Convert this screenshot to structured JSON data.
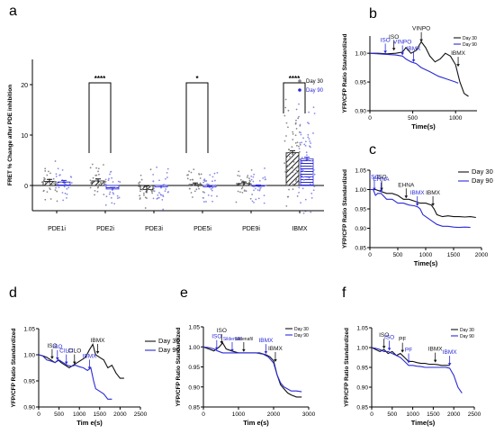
{
  "colors": {
    "day30": "#111111",
    "day90": "#2a2ad8",
    "axis": "#000000"
  },
  "chart_data": [
    {
      "panel": "a",
      "type": "bar",
      "ylabel": "FRET % Change after PDE inhibition",
      "categories": [
        "PDE1i",
        "PDE2i",
        "PDE3i",
        "PDE5i",
        "PDE9i",
        "IBMX"
      ],
      "ylim": [
        -5,
        25
      ],
      "yticks": [
        "0",
        "10",
        "20"
      ],
      "series": [
        {
          "name": "Day 30",
          "values": [
            0.8,
            0.9,
            -0.8,
            0.2,
            0.4,
            6.5
          ],
          "errors": [
            0.4,
            0.4,
            0.7,
            0.3,
            0.3,
            0.4
          ]
        },
        {
          "name": "Day 90",
          "values": [
            0.7,
            -0.7,
            -0.3,
            -0.3,
            -0.1,
            5.3
          ],
          "errors": [
            0.3,
            0.3,
            0.3,
            0.2,
            0.2,
            0.3
          ]
        }
      ],
      "significance": [
        {
          "between": [
            "PDE2i",
            "PDE2i"
          ],
          "label": "****"
        },
        {
          "between": [
            "PDE5i",
            "PDE5i"
          ],
          "label": "*"
        },
        {
          "between": [
            "IBMX",
            "IBMX"
          ],
          "label": "****"
        }
      ],
      "legend": "top-right"
    },
    {
      "panel": "b",
      "type": "line",
      "xlabel": "Time(s)",
      "ylabel": "YFP/CFP Ratio Standardized",
      "xlim": [
        0,
        1250
      ],
      "ylim": [
        0.9,
        1.03
      ],
      "xticks": [
        "0",
        "500",
        "1000"
      ],
      "yticks": [
        "0.90",
        "0.95",
        "1.00"
      ],
      "legend": "top-right",
      "series": [
        {
          "name": "Day 30",
          "x": [
            0,
            100,
            200,
            300,
            380,
            420,
            480,
            540,
            600,
            650,
            700,
            760,
            820,
            880,
            940,
            1000,
            1050,
            1100,
            1150
          ],
          "y": [
            1.0,
            1.0,
            0.999,
            1.0,
            1.002,
            1.01,
            1.0,
            1.005,
            1.02,
            1.01,
            0.995,
            0.985,
            0.99,
            1.0,
            0.995,
            0.98,
            0.95,
            0.93,
            0.925
          ]
        },
        {
          "name": "Day 90",
          "x": [
            0,
            100,
            200,
            300,
            380,
            420,
            480,
            540,
            600,
            700,
            800,
            900,
            1000,
            1030
          ],
          "y": [
            1.0,
            0.999,
            0.998,
            0.997,
            0.995,
            0.99,
            0.985,
            0.982,
            0.975,
            0.968,
            0.96,
            0.955,
            0.95,
            0.948
          ]
        }
      ],
      "annotations": [
        {
          "text": "ISO",
          "series": "Day 30",
          "x": 280,
          "y": 1.003
        },
        {
          "text": "VINPO",
          "series": "Day 30",
          "x": 600,
          "y": 1.018
        },
        {
          "text": "IBMX",
          "series": "Day 30",
          "x": 1030,
          "y": 0.975
        },
        {
          "text": "ISO",
          "series": "Day 90",
          "x": 180,
          "y": 0.998
        },
        {
          "text": "VINPO",
          "series": "Day 90",
          "x": 380,
          "y": 0.995
        },
        {
          "text": "IBMX",
          "series": "Day 90",
          "x": 510,
          "y": 0.983
        }
      ]
    },
    {
      "panel": "c",
      "type": "line",
      "xlabel": "Time(s)",
      "ylabel": "YFP/CFP Ratio Standardized",
      "xlim": [
        0,
        2000
      ],
      "ylim": [
        0.85,
        1.05
      ],
      "xticks": [
        "0",
        "500",
        "1000",
        "1500",
        "2000"
      ],
      "yticks": [
        "0.85",
        "0.90",
        "0.95",
        "1.00",
        "1.05"
      ],
      "legend": "top-right",
      "series": [
        {
          "name": "Day 30",
          "x": [
            0,
            100,
            200,
            300,
            400,
            500,
            600,
            700,
            800,
            900,
            1000,
            1100,
            1150,
            1200,
            1300,
            1400,
            1500,
            1600,
            1700,
            1800,
            1900
          ],
          "y": [
            1.0,
            1.0,
            0.995,
            0.99,
            0.99,
            0.985,
            0.975,
            0.975,
            0.97,
            0.965,
            0.965,
            0.96,
            0.95,
            0.935,
            0.93,
            0.932,
            0.93,
            0.93,
            0.929,
            0.93,
            0.928
          ]
        },
        {
          "name": "Day 90",
          "x": [
            0,
            60,
            100,
            140,
            200,
            300,
            400,
            500,
            600,
            700,
            800,
            860,
            900,
            950,
            1000,
            1100,
            1200,
            1300,
            1400,
            1500,
            1600,
            1700,
            1800
          ],
          "y": [
            1.0,
            1.0,
            0.985,
            0.99,
            0.99,
            0.975,
            0.975,
            0.965,
            0.965,
            0.96,
            0.958,
            0.955,
            0.95,
            0.935,
            0.93,
            0.92,
            0.91,
            0.905,
            0.905,
            0.903,
            0.902,
            0.903,
            0.902
          ]
        }
      ],
      "annotations": [
        {
          "text": "ISO",
          "series": "Day 30",
          "x": 210,
          "y": 0.995
        },
        {
          "text": "EHNA",
          "series": "Day 30",
          "x": 650,
          "y": 0.975
        },
        {
          "text": "IBMX",
          "series": "Day 30",
          "x": 1130,
          "y": 0.955
        },
        {
          "text": "ISO",
          "series": "Day 90",
          "x": 80,
          "y": 0.995
        },
        {
          "text": "EHNA",
          "series": "Day 90",
          "x": 200,
          "y": 0.99
        },
        {
          "text": "IBMX",
          "series": "Day 90",
          "x": 850,
          "y": 0.955
        }
      ]
    },
    {
      "panel": "d",
      "type": "line",
      "xlabel": "Tim e(s)",
      "ylabel": "YFP/CFP Ratio Standardized",
      "xlim": [
        0,
        2500
      ],
      "ylim": [
        0.9,
        1.05
      ],
      "xticks": [
        "0",
        "500",
        "1000",
        "1500",
        "2000",
        "2500"
      ],
      "yticks": [
        "0.90",
        "0.95",
        "1.00",
        "1.05"
      ],
      "legend": "right",
      "series": [
        {
          "name": "Day 30",
          "x": [
            0,
            100,
            200,
            300,
            400,
            480,
            550,
            650,
            750,
            850,
            950,
            1050,
            1150,
            1250,
            1330,
            1400,
            1500,
            1600,
            1700,
            1800,
            1900,
            2000,
            2100
          ],
          "y": [
            1.0,
            0.998,
            0.995,
            0.99,
            0.985,
            0.99,
            0.985,
            0.98,
            0.975,
            0.98,
            0.985,
            0.99,
            0.995,
            1.01,
            1.02,
            1.0,
            0.995,
            0.99,
            0.975,
            0.98,
            0.965,
            0.955,
            0.955
          ]
        },
        {
          "name": "Day 90",
          "x": [
            0,
            100,
            200,
            300,
            400,
            500,
            600,
            700,
            800,
            900,
            1000,
            1100,
            1200,
            1280,
            1350,
            1400,
            1500,
            1600,
            1700,
            1800
          ],
          "y": [
            1.0,
            0.998,
            0.99,
            0.988,
            0.985,
            0.99,
            0.985,
            0.98,
            0.978,
            0.98,
            0.977,
            0.975,
            0.97,
            0.975,
            0.95,
            0.935,
            0.93,
            0.925,
            0.915,
            0.915
          ]
        }
      ],
      "annotations": [
        {
          "text": "ISO",
          "series": "Day 30",
          "x": 330,
          "y": 0.99
        },
        {
          "text": "CILO",
          "series": "Day 30",
          "x": 880,
          "y": 0.98
        },
        {
          "text": "IBMX",
          "series": "Day 30",
          "x": 1450,
          "y": 1.0
        },
        {
          "text": "ISO",
          "series": "Day 90",
          "x": 460,
          "y": 0.988
        },
        {
          "text": "CILO",
          "series": "Day 90",
          "x": 680,
          "y": 0.98
        },
        {
          "text": "IBMX",
          "series": "Day 90",
          "x": 1250,
          "y": 0.97
        }
      ]
    },
    {
      "panel": "e",
      "type": "line",
      "xlabel": "Tim e(s)",
      "ylabel": "YFP/CFP Ratio Standardized",
      "xlim": [
        0,
        3000
      ],
      "ylim": [
        0.85,
        1.05
      ],
      "xticks": [
        "0",
        "1000",
        "2000",
        "3000"
      ],
      "yticks": [
        "0.85",
        "0.90",
        "0.95",
        "1.00",
        "1.05"
      ],
      "legend": "top-right",
      "series": [
        {
          "name": "Day 30",
          "x": [
            0,
            150,
            300,
            450,
            550,
            650,
            800,
            1000,
            1200,
            1400,
            1600,
            1800,
            1900,
            2000,
            2100,
            2200,
            2300,
            2400,
            2500,
            2650,
            2800
          ],
          "y": [
            1.0,
            0.995,
            0.99,
            1.0,
            1.01,
            0.995,
            0.99,
            0.985,
            0.985,
            0.985,
            0.985,
            0.98,
            0.975,
            0.965,
            0.93,
            0.905,
            0.895,
            0.885,
            0.88,
            0.875,
            0.875
          ]
        },
        {
          "name": "Day 90",
          "x": [
            0,
            150,
            300,
            400,
            550,
            700,
            900,
            1100,
            1300,
            1500,
            1700,
            1850,
            2000,
            2100,
            2200,
            2300,
            2400,
            2500,
            2650,
            2800
          ],
          "y": [
            1.0,
            0.998,
            0.995,
            0.99,
            0.985,
            0.985,
            0.985,
            0.985,
            0.985,
            0.985,
            0.982,
            0.975,
            0.96,
            0.93,
            0.91,
            0.9,
            0.895,
            0.89,
            0.89,
            0.888
          ]
        }
      ],
      "annotations": [
        {
          "text": "ISO",
          "series": "Day 30",
          "x": 520,
          "y": 1.005
        },
        {
          "text": "Sildenafil",
          "series": "Day 30",
          "x": 1150,
          "y": 0.985
        },
        {
          "text": "IBMX",
          "series": "Day 30",
          "x": 2050,
          "y": 0.96
        },
        {
          "text": "ISO",
          "series": "Day 90",
          "x": 380,
          "y": 0.99
        },
        {
          "text": "Sildenafil",
          "series": "Day 90",
          "x": 820,
          "y": 0.985
        },
        {
          "text": "IBMX",
          "series": "Day 90",
          "x": 1780,
          "y": 0.98
        }
      ]
    },
    {
      "panel": "f",
      "type": "line",
      "xlabel": "Time(s)",
      "ylabel": "YFP/CFP Ratio Standardized",
      "xlim": [
        0,
        2500
      ],
      "ylim": [
        0.85,
        1.05
      ],
      "xticks": [
        "0",
        "500",
        "1000",
        "1500",
        "2000",
        "2500"
      ],
      "yticks": [
        "0.85",
        "0.90",
        "0.95",
        "1.00",
        "1.05"
      ],
      "legend": "top-right",
      "series": [
        {
          "name": "Day 30",
          "x": [
            0,
            100,
            200,
            300,
            400,
            500,
            600,
            700,
            800,
            900,
            1000,
            1100,
            1200,
            1300,
            1400,
            1500,
            1600,
            1700,
            1800,
            1900
          ],
          "y": [
            1.0,
            0.995,
            0.99,
            0.995,
            0.985,
            0.99,
            0.98,
            0.985,
            0.975,
            0.965,
            0.965,
            0.962,
            0.96,
            0.96,
            0.958,
            0.958,
            0.957,
            0.955,
            0.955,
            0.955
          ]
        },
        {
          "name": "Day 90",
          "x": [
            0,
            100,
            200,
            300,
            400,
            500,
            600,
            700,
            800,
            900,
            1000,
            1100,
            1200,
            1300,
            1400,
            1500,
            1600,
            1700,
            1800,
            1900,
            2000,
            2100,
            2200
          ],
          "y": [
            1.0,
            0.998,
            0.995,
            0.99,
            0.99,
            0.985,
            0.98,
            0.975,
            0.965,
            0.955,
            0.955,
            0.953,
            0.952,
            0.95,
            0.95,
            0.95,
            0.95,
            0.95,
            0.95,
            0.948,
            0.93,
            0.9,
            0.885
          ]
        }
      ],
      "annotations": [
        {
          "text": "ISO",
          "series": "Day 30",
          "x": 300,
          "y": 0.995
        },
        {
          "text": "PF",
          "series": "Day 30",
          "x": 750,
          "y": 0.985
        },
        {
          "text": "IBMX",
          "series": "Day 30",
          "x": 1550,
          "y": 0.96
        },
        {
          "text": "ISO",
          "series": "Day 90",
          "x": 430,
          "y": 0.99
        },
        {
          "text": "PF",
          "series": "Day 90",
          "x": 900,
          "y": 0.958
        },
        {
          "text": "IBMX",
          "series": "Day 90",
          "x": 1900,
          "y": 0.952
        }
      ]
    }
  ]
}
